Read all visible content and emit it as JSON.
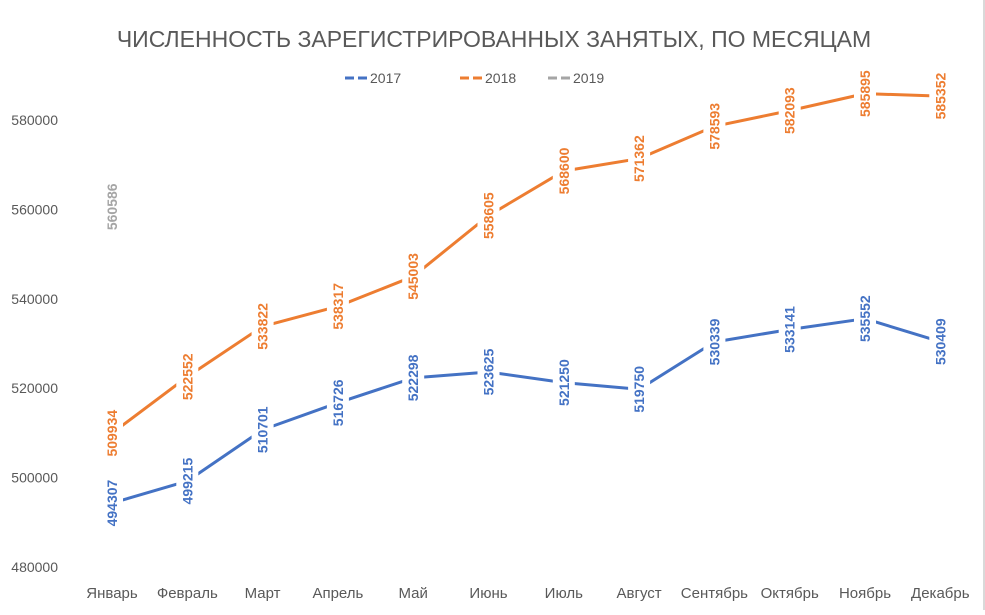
{
  "chart_data": {
    "type": "line",
    "title": "ЧИСЛЕННОСТЬ ЗАРЕГИСТРИРОВАННЫХ ЗАНЯТЫХ, ПО МЕСЯЦАМ",
    "categories": [
      "Январь",
      "Февраль",
      "Март",
      "Апрель",
      "Май",
      "Июнь",
      "Июль",
      "Август",
      "Сентябрь",
      "Октябрь",
      "Ноябрь",
      "Декабрь"
    ],
    "series": [
      {
        "name": "2017",
        "color": "#4472c4",
        "values": [
          494307,
          499215,
          510701,
          516726,
          522298,
          523625,
          521250,
          519750,
          530339,
          533141,
          535552,
          530409
        ]
      },
      {
        "name": "2018",
        "color": "#ed7d31",
        "values": [
          509934,
          522552,
          533822,
          538317,
          545003,
          558605,
          568600,
          571362,
          578593,
          582093,
          585895,
          585352
        ]
      },
      {
        "name": "2019",
        "color": "#a5a5a5",
        "values": [
          560586,
          null,
          null,
          null,
          null,
          null,
          null,
          null,
          null,
          null,
          null,
          null
        ]
      }
    ],
    "yticks": [
      480000,
      500000,
      520000,
      540000,
      560000,
      580000
    ],
    "ylim": [
      480000,
      590000
    ],
    "grid": false,
    "legend": "top",
    "data_labels": true
  }
}
